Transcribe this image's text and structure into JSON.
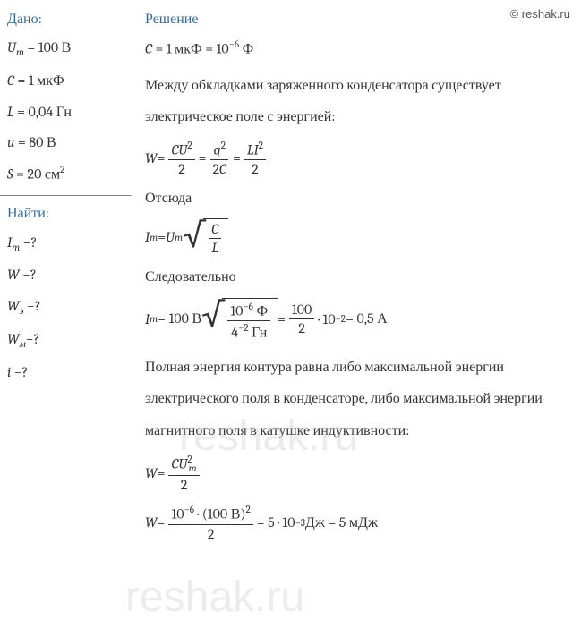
{
  "watermark": "© reshak.ru",
  "watermark_bg": "reshak.ru",
  "given": {
    "title": "Дано:",
    "um_label": "U",
    "um_sub": "m",
    "um_eq": " = 100 В",
    "c_label": "C",
    "c_eq": " = 1 мкФ",
    "l_label": "L",
    "l_eq": " = 0,04 Гн",
    "u_label": "u",
    "u_eq": " = 80 В",
    "s_label": "S",
    "s_eq": " = 20 см",
    "s_sup": "2"
  },
  "find": {
    "title": "Найти:",
    "im_label": "I",
    "im_sub": "m",
    "im_q": " −?",
    "w_label": "W",
    "w_q": " −?",
    "we_label": "W",
    "we_sub": "э",
    "we_q": " −?",
    "wm_label": "W",
    "wm_sub": "м",
    "wm_q": "−?",
    "i_label": "i",
    "i_q": " −?"
  },
  "solution": {
    "title": "Решение",
    "c_conv_1": "C",
    "c_conv_2": " = 1 мкФ = 10",
    "c_conv_sup": "−6",
    "c_conv_3": " Ф",
    "text1": "Между обкладками заряженного конденсатора существует электрическое поле с энергией:",
    "w_eq": "W",
    "eq_sign": " = ",
    "f1_num_c": "C",
    "f1_num_u": "U",
    "f1_num_sup": "2",
    "f1_den": "2",
    "f2_num_q": "q",
    "f2_num_sup": "2",
    "f2_den_2": "2",
    "f2_den_c": "C",
    "f3_num_l": "L",
    "f3_num_i": "I",
    "f3_num_sup": "2",
    "f3_den": "2",
    "hence": "Отсюда",
    "im_i": "I",
    "im_sub": "m",
    "im_u": "U",
    "sqrt_c": "C",
    "sqrt_l": "L",
    "therefore": "Следовательно",
    "calc_im_val": " = 100 В",
    "sqrt2_num_1": "10",
    "sqrt2_num_sup": "−6",
    "sqrt2_num_2": " Ф",
    "sqrt2_den_1": "4",
    "sqrt2_den_sup": "−2",
    "sqrt2_den_2": " Гн",
    "calc_frac_num": "100",
    "calc_frac_den": "2",
    "calc_mult": " · 10",
    "calc_mult_sup": "−2",
    "calc_result": " = 0,5 А",
    "text2": "Полная энергия контура равна либо максимальной энергии электрического поля в конденсаторе, либо максимальной энергии магнитного поля в катушке индуктивности:",
    "w2_num_c": "C",
    "w2_num_u": "U",
    "w2_num_sub": "m",
    "w2_num_sup": "2",
    "w2_den": "2",
    "w3_num_1": "10",
    "w3_num_sup1": "−6",
    "w3_num_2": " · (100 В)",
    "w3_num_sup2": "2",
    "w3_den": "2",
    "w3_eq1": " = 5 · 10",
    "w3_sup": "−3",
    "w3_eq2": " Дж = 5 мДж"
  }
}
